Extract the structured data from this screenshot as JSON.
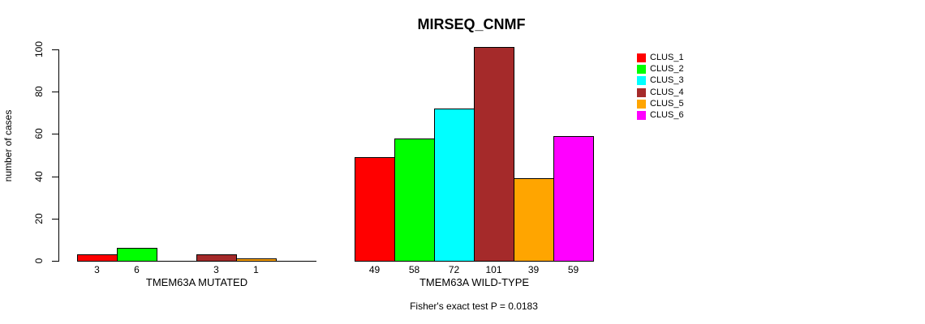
{
  "title": "MIRSEQ_CNMF",
  "footer": "Fisher's exact test P = 0.0183",
  "chart_data": {
    "type": "bar",
    "title": "MIRSEQ_CNMF",
    "xlabel": "",
    "ylabel": "number of cases",
    "ylim": [
      0,
      100
    ],
    "yticks": [
      0,
      20,
      40,
      60,
      80,
      100
    ],
    "grid": false,
    "legend_position": "right",
    "legend": [
      {
        "label": "CLUS_1",
        "color": "#FF0000"
      },
      {
        "label": "CLUS_2",
        "color": "#00FF00"
      },
      {
        "label": "CLUS_3",
        "color": "#00FFFF"
      },
      {
        "label": "CLUS_4",
        "color": "#A52A2A"
      },
      {
        "label": "CLUS_5",
        "color": "#FFA500"
      },
      {
        "label": "CLUS_6",
        "color": "#FF00FF"
      }
    ],
    "series_colors": [
      "#FF0000",
      "#00FF00",
      "#00FFFF",
      "#A52A2A",
      "#FFA500",
      "#FF00FF"
    ],
    "groups": [
      {
        "label": "TMEM63A MUTATED",
        "values": [
          3,
          6,
          0,
          3,
          1,
          0
        ],
        "bar_labels": [
          "3",
          "6",
          "",
          "3",
          "1",
          ""
        ]
      },
      {
        "label": "TMEM63A WILD-TYPE",
        "values": [
          49,
          58,
          72,
          101,
          39,
          59
        ],
        "bar_labels": [
          "49",
          "58",
          "72",
          "101",
          "39",
          "59"
        ]
      }
    ],
    "annotation": "Fisher's exact test P = 0.0183"
  }
}
